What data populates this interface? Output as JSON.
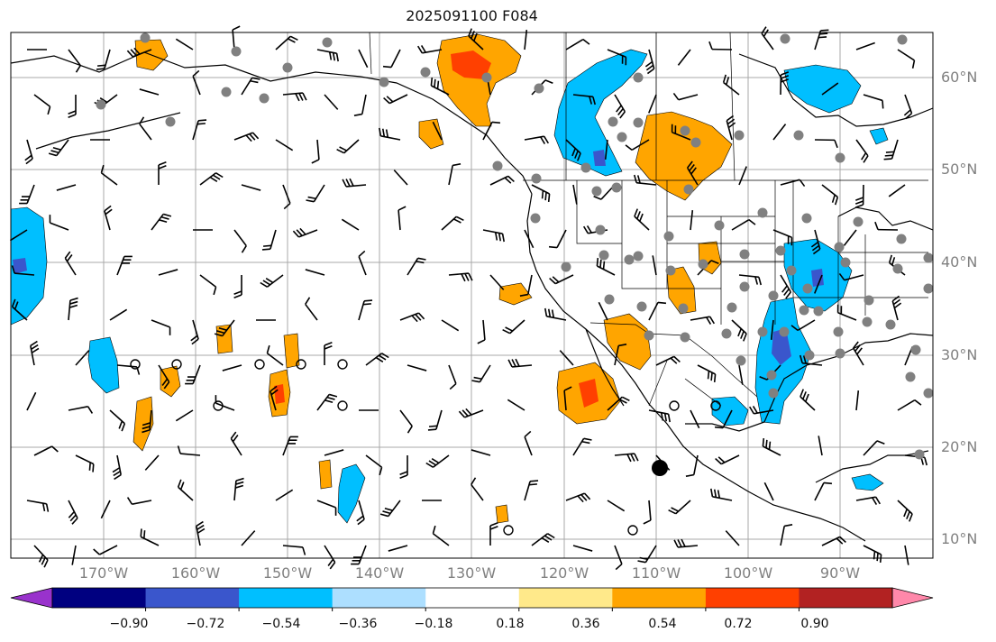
{
  "title": "2025091100 F084",
  "lat_labels": [
    "60°N",
    "50°N",
    "40°N",
    "30°N",
    "20°N",
    "10°N"
  ],
  "lon_labels": [
    "170°W",
    "160°W",
    "150°W",
    "140°W",
    "130°W",
    "120°W",
    "110°W",
    "100°W",
    "90°W"
  ],
  "colorbar": {
    "ticks": [
      "−0.90",
      "−0.72",
      "−0.54",
      "−0.36",
      "−0.18",
      "0.18",
      "0.36",
      "0.54",
      "0.72",
      "0.90"
    ],
    "colors": [
      "#9932CC",
      "#000080",
      "#3A56CC",
      "#00BFFF",
      "#ADDFFF",
      "#FFFFFF",
      "#FFE98A",
      "#FFA500",
      "#FF4000",
      "#B22222",
      "#FF88AA"
    ]
  },
  "colors": {
    "cool": "#00BFFF",
    "cool_light": "#ADDFFF",
    "cool_dark": "#3A56CC",
    "warm": "#FFA500",
    "warm_light": "#FFE98A",
    "warm_dark": "#FF4000",
    "station_dot": "#808080",
    "grid": "#A9A9A9"
  }
}
